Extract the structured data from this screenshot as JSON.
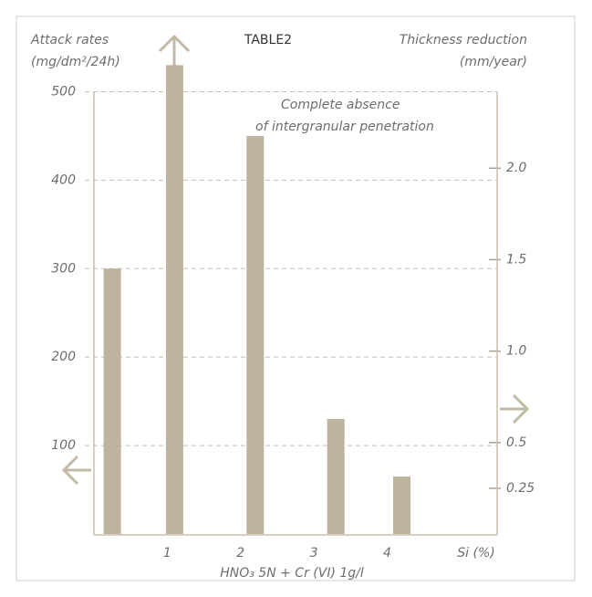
{
  "chart_data": {
    "type": "bar",
    "title": "TABLE2",
    "y_label": [
      "Attack rates",
      "(mg/dm²/24h)"
    ],
    "y2_label": [
      "Thickness reduction",
      "(mm/year)"
    ],
    "annotation": [
      "Complete absence",
      "of intergranular penetration"
    ],
    "subtitle": "HNO₃ 5N + Cr (VI) 1g/l",
    "x_label": "Si (%)",
    "x": [
      0.25,
      1.1,
      2.2,
      3.3,
      4.2
    ],
    "values": [
      300,
      530,
      450,
      130,
      65
    ],
    "color": "#bdb39e",
    "xlim": [
      0,
      5.5
    ],
    "xticks": [
      1,
      2,
      3,
      4
    ],
    "ylim": [
      0,
      550
    ],
    "yticks": [
      100,
      200,
      300,
      400,
      500
    ],
    "y2lim": [
      0,
      2.66
    ],
    "y2ticks": [
      0.25,
      0.5,
      {
        "value": 1,
        "label": "1.0"
      },
      1.5,
      {
        "value": 2,
        "label": "2.0"
      }
    ],
    "grid": true
  }
}
